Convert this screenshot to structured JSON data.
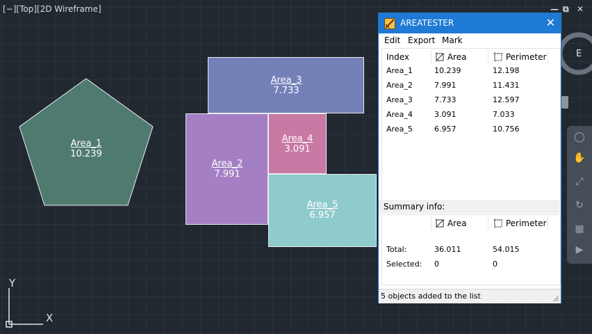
{
  "viewport": {
    "label": "[−][Top][2D Wireframe]"
  },
  "window_controls": {
    "minimize": "—",
    "restore": "⧉",
    "close": "✕"
  },
  "shapes": [
    {
      "name": "Area_1",
      "area": "10.239",
      "color": "#4f7a70"
    },
    {
      "name": "Area_2",
      "area": "7.991",
      "color": "#a47fc4"
    },
    {
      "name": "Area_3",
      "area": "7.733",
      "color": "#7480b8"
    },
    {
      "name": "Area_4",
      "area": "3.091",
      "color": "#c879a4"
    },
    {
      "name": "Area_5",
      "area": "6.957",
      "color": "#8fcacc"
    }
  ],
  "ucs": {
    "x": "X",
    "y": "Y"
  },
  "viewcube": {
    "label": "E"
  },
  "dialog": {
    "title": "AREATESTER",
    "close": "✕",
    "menu": [
      "Edit",
      "Export",
      "Mark"
    ],
    "columns": [
      "Index",
      "Area",
      "Perimeter"
    ],
    "rows": [
      [
        "Area_1",
        "10.239",
        "12.198"
      ],
      [
        "Area_2",
        "7.991",
        "11.431"
      ],
      [
        "Area_3",
        "7.733",
        "12.597"
      ],
      [
        "Area_4",
        "3.091",
        "7.033"
      ],
      [
        "Area_5",
        "6.957",
        "10.756"
      ]
    ],
    "summary_title": "Summary info:",
    "summary_columns": [
      "Area",
      "Perimeter"
    ],
    "summary": [
      [
        "Total:",
        "36.011",
        "54.015"
      ],
      [
        "Selected:",
        "0",
        "0"
      ]
    ],
    "status": "5 objects added to the list"
  }
}
